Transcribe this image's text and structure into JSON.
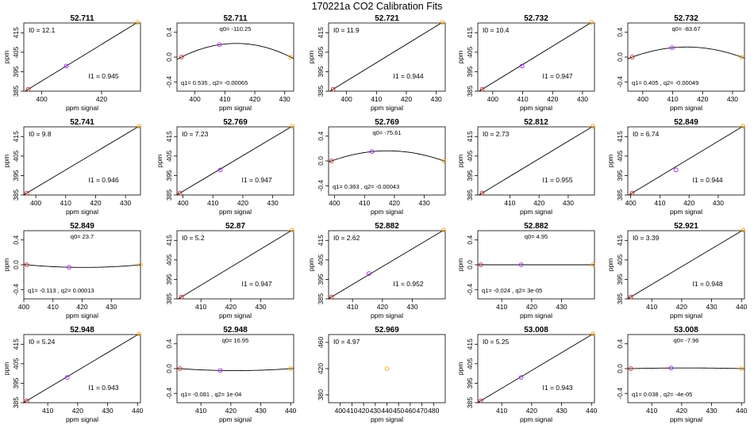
{
  "figure": {
    "title": "170221a   CO2 Calibration Fits"
  },
  "colors": {
    "low_point": "#d42020",
    "mid_point": "#a020f0",
    "high_point": "#ffa500",
    "line": "#000000"
  },
  "chart_data": [
    {
      "type": "scatter",
      "fit": "linear",
      "title": "52.711",
      "xlabel": "ppm signal",
      "ylabel": "ppm",
      "xlim": [
        394,
        433
      ],
      "ylim": [
        385,
        420
      ],
      "xticks": [
        400,
        420
      ],
      "yticks": [
        385,
        395,
        405,
        415
      ],
      "points": [
        [
          395.5,
          386.0
        ],
        [
          408.2,
          397.9
        ],
        [
          432.0,
          420.3
        ]
      ],
      "annot": {
        "top": "I0 =  12.1",
        "bottom": "I1 =  0.945"
      }
    },
    {
      "type": "scatter",
      "fit": "quadratic",
      "title": "52.711",
      "xlabel": "ppm signal",
      "ylabel": "",
      "xlim": [
        394,
        433
      ],
      "ylim": [
        -0.55,
        0.55
      ],
      "xticks": [
        400,
        410,
        420,
        430
      ],
      "yticks": [
        -0.4,
        0.0,
        0.4
      ],
      "yticklabels": [
        "-0.4",
        "0.0",
        "0.4"
      ],
      "points": [
        [
          395.5,
          0.0
        ],
        [
          408.2,
          0.2
        ],
        [
          432.0,
          0.0
        ]
      ],
      "annot": {
        "top": "q0= -110.25",
        "bottom": "q1= 0.535 , q2= -0.00065"
      }
    },
    {
      "type": "scatter",
      "fit": "linear",
      "title": "52.721",
      "xlabel": "ppm signal",
      "ylabel": "ppm",
      "xlim": [
        394,
        433
      ],
      "ylim": [
        385,
        420
      ],
      "xticks": [
        400,
        410,
        420,
        430
      ],
      "yticks": [
        385,
        395,
        405,
        415
      ],
      "points": [
        [
          395.5,
          386.0
        ],
        [
          432.0,
          420.3
        ]
      ],
      "annot": {
        "top": "I0 =  11.9",
        "bottom": "I1 =  0.944"
      }
    },
    {
      "type": "scatter",
      "fit": "linear",
      "title": "52.732",
      "xlabel": "ppm signal",
      "ylabel": "ppm",
      "xlim": [
        395,
        434
      ],
      "ylim": [
        385,
        420
      ],
      "xticks": [
        400,
        410,
        420,
        430
      ],
      "yticks": [
        385,
        395,
        405,
        415
      ],
      "points": [
        [
          396.5,
          386.0
        ],
        [
          409.8,
          397.9
        ],
        [
          433.0,
          420.3
        ]
      ],
      "annot": {
        "top": "I0 =  10.4",
        "bottom": "I1 =  0.947"
      }
    },
    {
      "type": "scatter",
      "fit": "quadratic",
      "title": "52.732",
      "xlabel": "ppm signal",
      "ylabel": "",
      "xlim": [
        395,
        434
      ],
      "ylim": [
        -0.55,
        0.55
      ],
      "xticks": [
        400,
        410,
        420,
        430
      ],
      "yticks": [
        -0.4,
        0.0,
        0.4
      ],
      "yticklabels": [
        "-0.4",
        "0.0",
        "0.4"
      ],
      "points": [
        [
          396.5,
          0.0
        ],
        [
          409.8,
          0.15
        ],
        [
          433.0,
          0.0
        ]
      ],
      "annot": {
        "top": "q0= -83.67",
        "bottom": "q1= 0.405 , q2= -0.00049"
      }
    },
    {
      "type": "scatter",
      "fit": "linear",
      "title": "52.741",
      "xlabel": "ppm signal",
      "ylabel": "ppm",
      "xlim": [
        396,
        435
      ],
      "ylim": [
        385,
        420
      ],
      "xticks": [
        400,
        410,
        420,
        430
      ],
      "yticks": [
        385,
        395,
        405,
        415
      ],
      "points": [
        [
          397.0,
          386.0
        ],
        [
          434.5,
          420.3
        ]
      ],
      "annot": {
        "top": "I0 =  9.8",
        "bottom": "I1 =  0.946"
      }
    },
    {
      "type": "scatter",
      "fit": "linear",
      "title": "52.769",
      "xlabel": "ppm signal",
      "ylabel": "ppm",
      "xlim": [
        398,
        437
      ],
      "ylim": [
        385,
        420
      ],
      "xticks": [
        400,
        410,
        420,
        430
      ],
      "yticks": [
        385,
        395,
        405,
        415
      ],
      "points": [
        [
          399.0,
          386.0
        ],
        [
          412.5,
          397.9
        ],
        [
          436.5,
          420.3
        ]
      ],
      "annot": {
        "top": "I0 =  7.23",
        "bottom": "I1 =  0.947"
      }
    },
    {
      "type": "scatter",
      "fit": "quadratic",
      "title": "52.769",
      "xlabel": "ppm signal",
      "ylabel": "",
      "xlim": [
        398,
        437
      ],
      "ylim": [
        -0.55,
        0.55
      ],
      "xticks": [
        400,
        410,
        420,
        430
      ],
      "yticks": [
        -0.4,
        0.0,
        0.4
      ],
      "yticklabels": [
        "-0.4",
        "0.0",
        "0.4"
      ],
      "points": [
        [
          399.0,
          0.0
        ],
        [
          412.5,
          0.15
        ],
        [
          436.5,
          0.0
        ]
      ],
      "annot": {
        "top": "q0= -75.61",
        "bottom": "q1= 0.363 , q2= -0.00043"
      }
    },
    {
      "type": "scatter",
      "fit": "linear",
      "title": "52.812",
      "xlabel": "ppm signal",
      "ylabel": "ppm",
      "xlim": [
        399,
        439
      ],
      "ylim": [
        385,
        420
      ],
      "xticks": [
        410,
        420,
        430
      ],
      "yticks": [
        385,
        395,
        405,
        415
      ],
      "points": [
        [
          400.5,
          386.0
        ],
        [
          438.5,
          420.3
        ]
      ],
      "annot": {
        "top": "I0 =  2.73",
        "bottom": "I1 =  0.955"
      }
    },
    {
      "type": "scatter",
      "fit": "linear",
      "title": "52.849",
      "xlabel": "ppm signal",
      "ylabel": "ppm",
      "xlim": [
        399,
        439
      ],
      "ylim": [
        385,
        420
      ],
      "xticks": [
        400,
        410,
        420,
        430
      ],
      "yticks": [
        385,
        395,
        405,
        415
      ],
      "points": [
        [
          400.5,
          386.0
        ],
        [
          415.5,
          397.9
        ],
        [
          438.5,
          420.3
        ]
      ],
      "annot": {
        "top": "I0 =  6.74",
        "bottom": "I1 =  0.944"
      }
    },
    {
      "type": "scatter",
      "fit": "quadratic",
      "title": "52.849",
      "xlabel": "ppm signal",
      "ylabel": "ppm",
      "xlim": [
        400,
        440
      ],
      "ylim": [
        -0.55,
        0.55
      ],
      "xticks": [
        400,
        410,
        420,
        430
      ],
      "yticks": [
        -0.4,
        0.0,
        0.4
      ],
      "yticklabels": [
        "-0.4",
        "0.0",
        "0.4"
      ],
      "points": [
        [
          401.0,
          0.0
        ],
        [
          415.5,
          -0.04
        ],
        [
          440.0,
          0.0
        ]
      ],
      "annot": {
        "top": "q0= 23.7",
        "bottom": "q1= -0.113 , q2= 0.00013"
      }
    },
    {
      "type": "scatter",
      "fit": "linear",
      "title": "52.87",
      "xlabel": "ppm signal",
      "ylabel": "",
      "xlim": [
        402,
        441
      ],
      "ylim": [
        385,
        420
      ],
      "xticks": [
        410,
        420,
        430
      ],
      "yticks": [
        385,
        395,
        405,
        415
      ],
      "points": [
        [
          403.5,
          386.0
        ],
        [
          440.5,
          420.3
        ]
      ],
      "annot": {
        "top": "I0 =  5.2",
        "bottom": "I1 =  0.947"
      }
    },
    {
      "type": "scatter",
      "fit": "linear",
      "title": "52.882",
      "xlabel": "ppm signal",
      "ylabel": "ppm",
      "xlim": [
        402,
        441
      ],
      "ylim": [
        385,
        420
      ],
      "xticks": [
        410,
        420,
        430
      ],
      "yticks": [
        385,
        395,
        405,
        415
      ],
      "points": [
        [
          403.0,
          386.0
        ],
        [
          415.5,
          398.0
        ],
        [
          440.5,
          420.3
        ]
      ],
      "annot": {
        "top": "I0 =  2.62",
        "bottom": "I1 =  0.952"
      }
    },
    {
      "type": "scatter",
      "fit": "quadratic",
      "title": "52.882",
      "xlabel": "ppm signal",
      "ylabel": "ppm",
      "xlim": [
        402,
        441
      ],
      "ylim": [
        -0.55,
        0.55
      ],
      "xticks": [
        410,
        420,
        430
      ],
      "yticks": [
        -0.4,
        0.0,
        0.4
      ],
      "yticklabels": [
        "-0.4",
        "0.0",
        "0.4"
      ],
      "points": [
        [
          403.0,
          0.0
        ],
        [
          416.5,
          0.0
        ],
        [
          440.5,
          0.0
        ]
      ],
      "annot": {
        "top": "q0= 4.95",
        "bottom": "q1= -0.024 , q2= 3e-05"
      }
    },
    {
      "type": "scatter",
      "fit": "linear",
      "title": "52.921",
      "xlabel": "ppm signal",
      "ylabel": "ppm",
      "xlim": [
        402,
        441
      ],
      "ylim": [
        385,
        420
      ],
      "xticks": [
        410,
        420,
        430,
        440
      ],
      "yticks": [
        385,
        395,
        405,
        415
      ],
      "points": [
        [
          403.0,
          386.0
        ],
        [
          440.5,
          420.3
        ]
      ],
      "annot": {
        "top": "I0 =  3.39",
        "bottom": "I1 =  0.948"
      }
    },
    {
      "type": "scatter",
      "fit": "linear",
      "title": "52.948",
      "xlabel": "ppm signal",
      "ylabel": "ppm",
      "xlim": [
        402,
        441
      ],
      "ylim": [
        385,
        420
      ],
      "xticks": [
        410,
        420,
        430,
        440
      ],
      "yticks": [
        385,
        395,
        405,
        415
      ],
      "points": [
        [
          403.0,
          386.0
        ],
        [
          416.5,
          398.0
        ],
        [
          440.5,
          420.3
        ]
      ],
      "annot": {
        "top": "I0 =  5.24",
        "bottom": "I1 =  0.943"
      }
    },
    {
      "type": "scatter",
      "fit": "quadratic",
      "title": "52.948",
      "xlabel": "ppm signal",
      "ylabel": "",
      "xlim": [
        402,
        441
      ],
      "ylim": [
        -0.55,
        0.55
      ],
      "xticks": [
        410,
        420,
        430,
        440
      ],
      "yticks": [
        -0.4,
        0.0,
        0.4
      ],
      "yticklabels": [
        "-0.4",
        "0.0",
        "0.4"
      ],
      "points": [
        [
          403.0,
          0.0
        ],
        [
          416.5,
          -0.03
        ],
        [
          440.0,
          0.0
        ]
      ],
      "annot": {
        "top": "q0= 16.95",
        "bottom": "q1= -0.081 , q2= 1e-04"
      }
    },
    {
      "type": "scatter",
      "fit": "none",
      "title": "52.969",
      "xlabel": "ppm signal",
      "ylabel": "",
      "xlim": [
        390,
        490
      ],
      "ylim": [
        368,
        472
      ],
      "xticks": [
        400,
        410,
        420,
        430,
        440,
        450,
        460,
        470,
        480
      ],
      "yticks": [
        380,
        420,
        460
      ],
      "points": [
        [
          440.0,
          420.0
        ]
      ],
      "point_colors": [
        "#ffa500"
      ],
      "annot": {
        "top": "I0 =  4.97",
        "bottom": ""
      }
    },
    {
      "type": "scatter",
      "fit": "linear",
      "title": "53.008",
      "xlabel": "ppm signal",
      "ylabel": "ppm",
      "xlim": [
        402,
        441
      ],
      "ylim": [
        385,
        420
      ],
      "xticks": [
        410,
        420,
        430,
        440
      ],
      "yticks": [
        385,
        395,
        405,
        415
      ],
      "points": [
        [
          403.0,
          386.0
        ],
        [
          416.5,
          398.0
        ],
        [
          440.5,
          420.3
        ]
      ],
      "annot": {
        "top": "I0 =  5.25",
        "bottom": "I1 =  0.943"
      }
    },
    {
      "type": "scatter",
      "fit": "quadratic",
      "title": "53.008",
      "xlabel": "ppm signal",
      "ylabel": "",
      "xlim": [
        402,
        441
      ],
      "ylim": [
        -0.55,
        0.55
      ],
      "xticks": [
        410,
        420,
        430,
        440
      ],
      "yticks": [
        -0.4,
        0.0,
        0.4
      ],
      "yticklabels": [
        "-0.4",
        "0.0",
        "0.4"
      ],
      "points": [
        [
          403.0,
          0.0
        ],
        [
          416.5,
          0.01
        ],
        [
          440.0,
          0.0
        ]
      ],
      "annot": {
        "top": "q0= -7.96",
        "bottom": "q1= 0.038 , q2= -4e-05"
      }
    }
  ]
}
